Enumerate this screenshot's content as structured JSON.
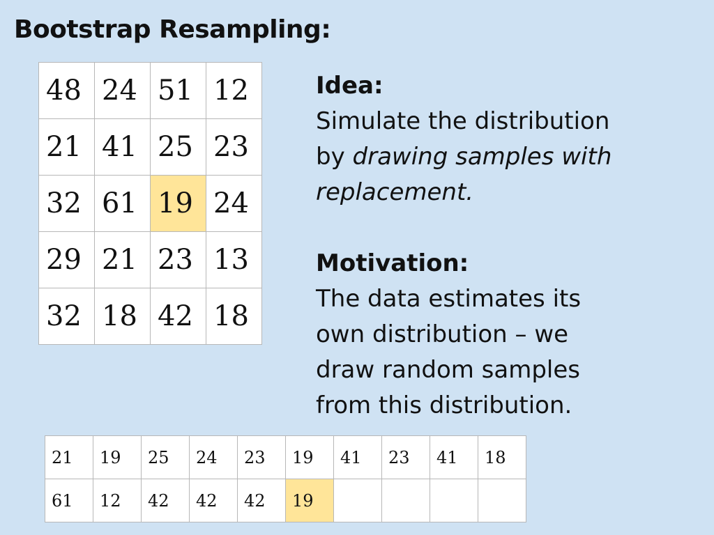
{
  "title": "Bootstrap Resampling:",
  "grid": [
    [
      "48",
      "24",
      "51",
      "12"
    ],
    [
      "21",
      "41",
      "25",
      "23"
    ],
    [
      "32",
      "61",
      "19",
      "24"
    ],
    [
      "29",
      "21",
      "23",
      "13"
    ],
    [
      "32",
      "18",
      "42",
      "18"
    ]
  ],
  "grid_highlight": {
    "row": 2,
    "col": 2,
    "color": "#ffe599"
  },
  "idea": {
    "heading": "Idea:",
    "line1": "Simulate the distribution",
    "line2_prefix": "by ",
    "line2_italic": "drawing samples with",
    "line3_italic": "replacement."
  },
  "motivation": {
    "heading": "Motivation:",
    "line1": "The data estimates its",
    "line2": "own distribution – we",
    "line3": "draw random samples",
    "line4": "from this distribution."
  },
  "samples": [
    [
      "21",
      "19",
      "25",
      "24",
      "23",
      "19",
      "41",
      "23",
      "41",
      "18"
    ],
    [
      "61",
      "12",
      "42",
      "42",
      "42",
      "19",
      "",
      "",
      "",
      ""
    ]
  ],
  "samples_highlight": {
    "row": 1,
    "col": 5,
    "color": "#ffe599"
  },
  "colors": {
    "background": "#cfe2f3",
    "highlight": "#ffe599",
    "cell_border": "#b7b7b7"
  }
}
